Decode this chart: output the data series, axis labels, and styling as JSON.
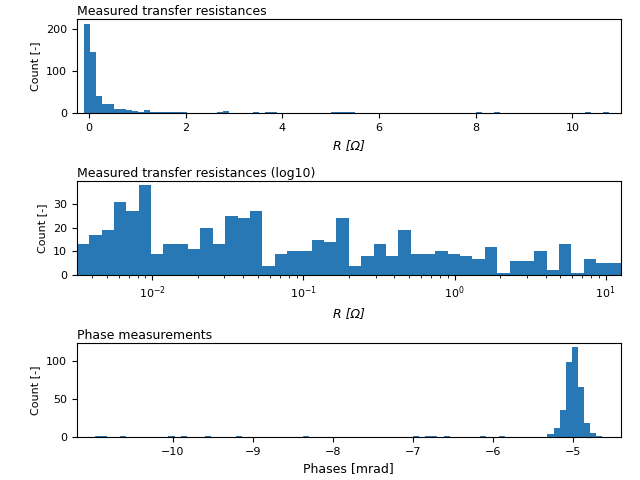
{
  "title1": "Measured transfer resistances",
  "title2": "Measured transfer resistances (log10)",
  "title3": "Phase measurements",
  "xlabel1": "R [Ω]",
  "xlabel2": "R [Ω]",
  "xlabel3": "Phases [mrad]",
  "ylabel": "Count [-]",
  "bar_color": "#2878b5",
  "fig_size": [
    6.4,
    4.8
  ],
  "dpi": 100,
  "plot1_xlim": [
    -0.25,
    11.0
  ],
  "plot1_xticks": [
    0,
    2,
    4,
    6,
    8,
    10
  ],
  "plot2_xlim_log": [
    -2.5,
    1.1
  ],
  "plot3_xlim": [
    -11.2,
    -4.4
  ],
  "plot3_xticks": [
    -10,
    -9,
    -8,
    -7,
    -6,
    -5
  ]
}
